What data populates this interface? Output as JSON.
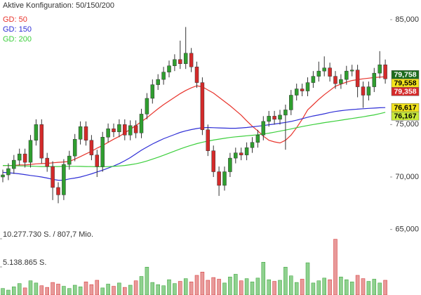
{
  "chart_data": {
    "type": "candlestick",
    "title": "Aktive Konfiguration: 50/150/200",
    "up_color": "#2f9e2f",
    "down_color": "#d42a2a",
    "grid": false,
    "open": [
      70000,
      70200,
      70800,
      71600,
      72200,
      71400,
      73500,
      75000,
      71800,
      71000,
      69000,
      68300,
      71200,
      72000,
      73600,
      74800,
      73500,
      72100,
      71000,
      73800,
      74600,
      74300,
      75000,
      74000,
      74900,
      74200,
      76000,
      77500,
      78800,
      79300,
      80000,
      80600,
      81200,
      80800,
      81800,
      80500,
      79000,
      74500,
      72500,
      70500,
      69200,
      70500,
      71800,
      72300,
      72100,
      72800,
      73300,
      74000,
      75300,
      75800,
      75500,
      75900,
      76400,
      77800,
      78400,
      78200,
      79000,
      79600,
      80100,
      80400,
      79600,
      78900,
      79300,
      80100,
      80200,
      78600,
      77800,
      78600,
      79900,
      80700
    ],
    "high": [
      70700,
      71300,
      72100,
      72700,
      72700,
      74000,
      75500,
      75500,
      72300,
      71500,
      69500,
      71700,
      72500,
      74100,
      75300,
      75300,
      74000,
      72600,
      74300,
      75100,
      75100,
      75500,
      75500,
      75400,
      75400,
      76500,
      78000,
      79300,
      79800,
      80500,
      81100,
      81700,
      83000,
      84300,
      82300,
      81000,
      79500,
      75000,
      73000,
      71000,
      71000,
      72300,
      72800,
      72800,
      73300,
      73800,
      74500,
      75800,
      76300,
      76300,
      76400,
      76900,
      78300,
      78900,
      78900,
      79500,
      80100,
      81000,
      81500,
      80900,
      80100,
      79800,
      80600,
      80700,
      80700,
      79100,
      79100,
      80400,
      82000,
      81200
    ],
    "low": [
      69500,
      69700,
      70300,
      71100,
      70900,
      70900,
      73000,
      71300,
      70500,
      67800,
      67500,
      67800,
      70700,
      71500,
      73100,
      73000,
      71600,
      70000,
      70500,
      73300,
      73800,
      73800,
      73500,
      73500,
      73700,
      73700,
      75500,
      77000,
      78300,
      78800,
      79500,
      80100,
      80300,
      80300,
      80000,
      78500,
      74000,
      72000,
      70000,
      68200,
      68700,
      70000,
      71300,
      71600,
      71600,
      72300,
      72800,
      73500,
      74800,
      75000,
      75000,
      72600,
      75900,
      77300,
      77700,
      77700,
      78500,
      79100,
      79600,
      79100,
      78400,
      78400,
      78800,
      79600,
      77600,
      76600,
      77300,
      78100,
      79400,
      78900
    ],
    "close": [
      70200,
      70800,
      71600,
      72200,
      71400,
      73500,
      75000,
      71800,
      71000,
      69000,
      68300,
      71200,
      72000,
      73600,
      74800,
      73500,
      72100,
      71000,
      73800,
      74600,
      74300,
      75000,
      74000,
      74900,
      74200,
      76000,
      77500,
      78800,
      79300,
      80000,
      80600,
      81200,
      80800,
      81800,
      80500,
      79000,
      74500,
      72500,
      70500,
      69200,
      70500,
      71800,
      72300,
      72100,
      72800,
      73300,
      74000,
      75300,
      75800,
      75500,
      75900,
      76400,
      77800,
      78400,
      78200,
      79000,
      79600,
      80100,
      80400,
      79600,
      78900,
      79300,
      80100,
      80200,
      78600,
      77800,
      78600,
      79900,
      80700,
      79358
    ],
    "ylim": [
      58750,
      86875
    ],
    "yticks": [
      {
        "value": 65000,
        "label": "65,000"
      },
      {
        "value": 70000,
        "label": "70,000"
      },
      {
        "value": 75000,
        "label": "75,000"
      },
      {
        "value": 85000,
        "label": "85,000"
      }
    ],
    "series": [
      {
        "name": "GD: 50",
        "color": "#e8342c",
        "values": [
          71100,
          71100,
          71100,
          71150,
          71150,
          71200,
          71250,
          71280,
          71300,
          71350,
          71400,
          71430,
          71480,
          71700,
          71950,
          72200,
          72450,
          72750,
          73000,
          73300,
          73600,
          73870,
          74200,
          74550,
          74900,
          75280,
          75650,
          76080,
          76500,
          76900,
          77250,
          77600,
          77950,
          78250,
          78500,
          78700,
          78600,
          78300,
          78000,
          77600,
          77200,
          76800,
          76350,
          75900,
          75350,
          74840,
          74400,
          73900,
          73500,
          73350,
          73250,
          73500,
          74000,
          74700,
          75500,
          76400,
          76900,
          77400,
          77850,
          78250,
          78650,
          78850,
          79050,
          79200,
          79280,
          79360,
          79420,
          79480,
          79520,
          79558
        ]
      },
      {
        "name": "GD: 150",
        "color": "#2e2ed6",
        "values": [
          70440,
          70400,
          70360,
          70300,
          70230,
          70150,
          70080,
          70000,
          69900,
          69780,
          69690,
          69700,
          69820,
          69900,
          70000,
          70150,
          70300,
          70480,
          70650,
          70850,
          71050,
          71280,
          71550,
          71850,
          72200,
          72550,
          72850,
          73150,
          73400,
          73650,
          73850,
          74050,
          74250,
          74400,
          74520,
          74620,
          74700,
          74720,
          74700,
          74680,
          74660,
          74650,
          74650,
          74680,
          74720,
          74780,
          74840,
          74900,
          74980,
          75050,
          75120,
          75200,
          75300,
          75420,
          75550,
          75700,
          75820,
          75920,
          76030,
          76150,
          76250,
          76320,
          76380,
          76430,
          76470,
          76510,
          76540,
          76570,
          76600,
          76617
        ]
      },
      {
        "name": "GD: 200",
        "color": "#3ccf3c",
        "values": [
          71100,
          71100,
          71080,
          71060,
          71050,
          71040,
          71020,
          71000,
          71000,
          71000,
          71000,
          71010,
          71020,
          71020,
          71010,
          71000,
          70990,
          70980,
          70980,
          70990,
          71010,
          71050,
          71100,
          71170,
          71260,
          71380,
          71530,
          71700,
          71880,
          72070,
          72270,
          72470,
          72670,
          72860,
          73030,
          73180,
          73310,
          73420,
          73520,
          73610,
          73690,
          73770,
          73830,
          73880,
          73930,
          73980,
          74030,
          74100,
          74180,
          74270,
          74370,
          74470,
          74580,
          74700,
          74810,
          74910,
          75000,
          75090,
          75180,
          75260,
          75340,
          75420,
          75500,
          75580,
          75660,
          75740,
          75830,
          75920,
          76040,
          76167
        ]
      }
    ],
    "volume": {
      "values": [
        1200000,
        900000,
        1500000,
        2100000,
        1300000,
        2600000,
        2200000,
        1700000,
        1400000,
        2300000,
        2000000,
        1600000,
        1200000,
        1800000,
        1500000,
        2400000,
        1900000,
        2700000,
        1300000,
        2000000,
        1600000,
        2200000,
        1400000,
        1800000,
        2600000,
        3400000,
        5100000,
        2300000,
        1900000,
        1700000,
        2800000,
        2100000,
        2500000,
        3000000,
        2400000,
        3600000,
        4200000,
        2700000,
        3200000,
        2900000,
        2200000,
        3300000,
        3800000,
        2600000,
        3000000,
        2400000,
        3100000,
        6000000,
        2800000,
        2500000,
        2700000,
        5100000,
        3500000,
        2300000,
        2900000,
        5900000,
        2200000,
        2600000,
        3100000,
        2800000,
        10200000,
        3300000,
        2800000,
        2400000,
        3600000,
        3000000,
        2500000,
        2900000,
        2200000,
        2700000
      ],
      "ylim": [
        0,
        10277730
      ],
      "yticks": [
        {
          "value": 10277730,
          "label": "10.277.730 S. / 807,7 Mio."
        },
        {
          "value": 5138865,
          "label": "5.138.865 S."
        }
      ]
    },
    "price_labels": [
      {
        "value": 79758,
        "label": "79,758",
        "color": "#1d6b1d",
        "text_color": "#ffffff"
      },
      {
        "value": 79558,
        "label": "79,558",
        "color": "#f3e41c",
        "text_color": "#000000"
      },
      {
        "value": 79358,
        "label": "79,358",
        "color": "#d42a2a",
        "text_color": "#ffffff"
      },
      {
        "value": 76617,
        "label": "76,617",
        "color": "#f3e41c",
        "text_color": "#000000"
      },
      {
        "value": 76167,
        "label": "76,167",
        "color": "#c8ea3a",
        "text_color": "#000000"
      }
    ]
  }
}
